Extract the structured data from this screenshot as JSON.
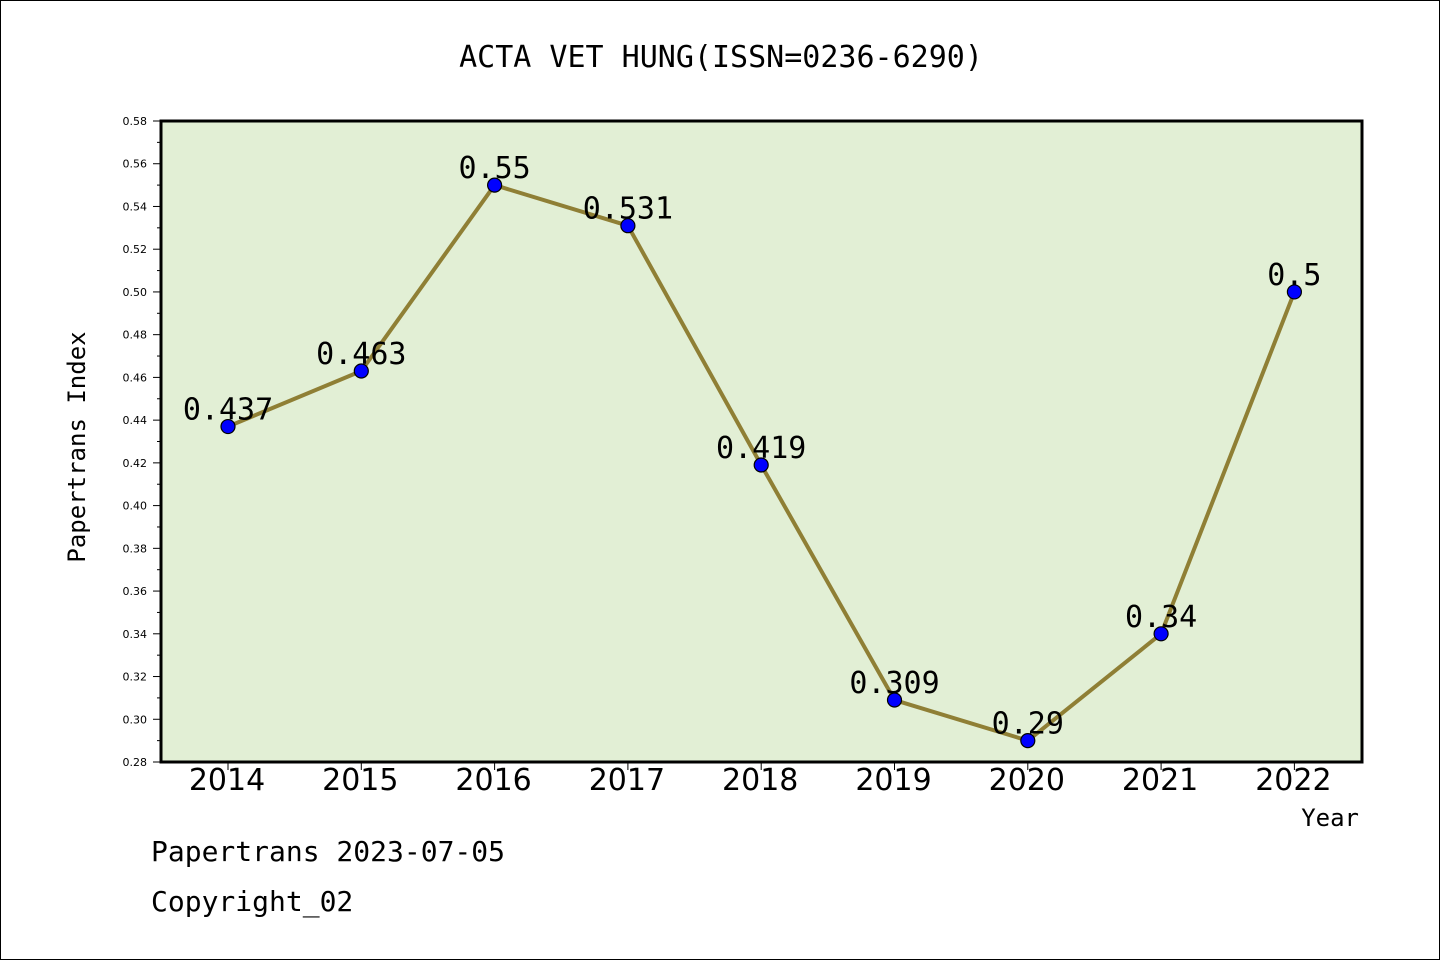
{
  "chart_data": {
    "type": "line",
    "title": "ACTA VET HUNG(ISSN=0236-6290)",
    "xlabel": "Year",
    "ylabel": "Papertrans Index",
    "categories": [
      "2014",
      "2015",
      "2016",
      "2017",
      "2018",
      "2019",
      "2020",
      "2021",
      "2022"
    ],
    "values": [
      0.437,
      0.463,
      0.55,
      0.531,
      0.419,
      0.309,
      0.29,
      0.34,
      0.5
    ],
    "data_labels": [
      "0.437",
      "0.463",
      "0.55",
      "0.531",
      "0.419",
      "0.309",
      "0.29",
      "0.34",
      "0.5"
    ],
    "ylim": [
      0.28,
      0.58
    ],
    "yticks": [
      "0.28",
      "0.30",
      "0.32",
      "0.34",
      "0.36",
      "0.38",
      "0.40",
      "0.42",
      "0.44",
      "0.46",
      "0.48",
      "0.50",
      "0.52",
      "0.54",
      "0.56",
      "0.58"
    ],
    "grid": false,
    "legend": "none",
    "colors": {
      "plot_background": "#e2efd5",
      "line": "#8f7f35",
      "marker": "#0000ff"
    }
  },
  "footer": {
    "date_line": "Papertrans 2023-07-05",
    "copyright": "Copyright_02"
  }
}
